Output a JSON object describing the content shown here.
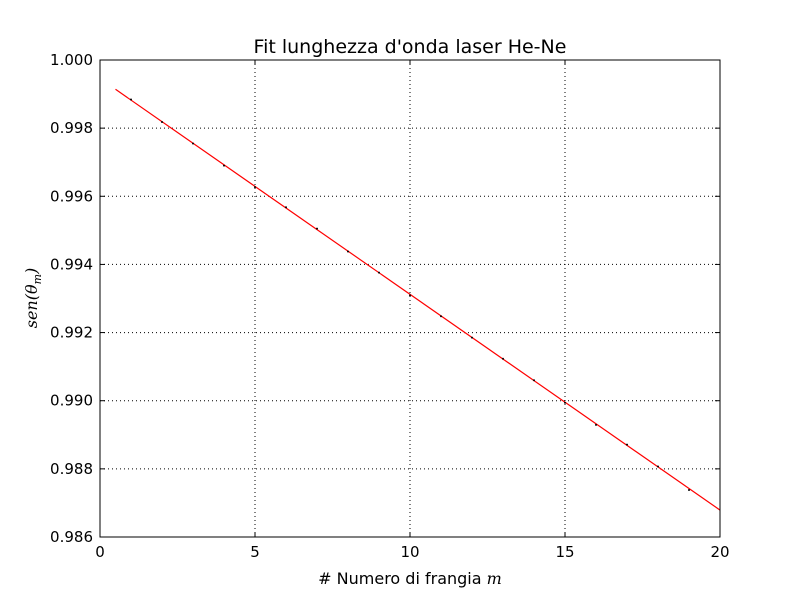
{
  "chart_data": {
    "type": "line",
    "title": "Fit lunghezza d'onda laser He-Ne",
    "xlabel_text": "# Numero di frangia ",
    "xlabel_math": "m",
    "ylabel_text": "sen(θ",
    "ylabel_sub": "m",
    "ylabel_close": ")",
    "xlim": [
      0,
      20
    ],
    "ylim": [
      0.986,
      1.0
    ],
    "x_ticks": [
      0,
      5,
      10,
      15,
      20
    ],
    "x_tick_labels": [
      "0",
      "5",
      "10",
      "15",
      "20"
    ],
    "y_ticks": [
      0.986,
      0.988,
      0.99,
      0.992,
      0.994,
      0.996,
      0.998,
      1.0
    ],
    "y_tick_labels": [
      "0.986",
      "0.988",
      "0.990",
      "0.992",
      "0.994",
      "0.996",
      "0.998",
      "1.000"
    ],
    "grid": true,
    "colors": {
      "fit_line": "#ff0000",
      "points": "#000000",
      "grid": "#000000"
    },
    "series": [
      {
        "kind": "points",
        "x": [
          1,
          2,
          3,
          4,
          5,
          6,
          7,
          8,
          9,
          10,
          11,
          12,
          13,
          14,
          15,
          16,
          17,
          18,
          19
        ],
        "y": [
          0.99884,
          0.99818,
          0.99755,
          0.9969,
          0.99627,
          0.99568,
          0.99505,
          0.99438,
          0.99376,
          0.99309,
          0.99248,
          0.99185,
          0.99123,
          0.9906,
          0.98994,
          0.98929,
          0.98871,
          0.98807,
          0.98738
        ]
      },
      {
        "kind": "fit",
        "x": [
          0.5,
          20
        ],
        "y": [
          0.99914,
          0.98679
        ]
      }
    ]
  }
}
